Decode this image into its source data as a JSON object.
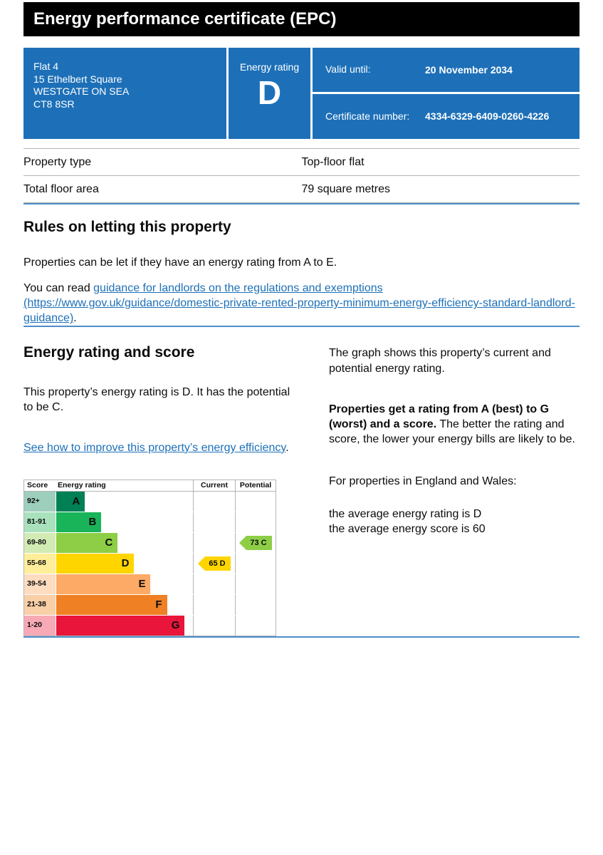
{
  "header": {
    "title": "Energy performance certificate (EPC)"
  },
  "summary": {
    "address_lines": [
      "Flat 4",
      "15 Ethelbert Square",
      "WESTGATE ON SEA",
      "CT8 8SR"
    ],
    "energy_rating_label": "Energy rating",
    "energy_rating_value": "D",
    "valid_until_label": "Valid until:",
    "valid_until_value": "20 November 2034",
    "certificate_number_label": "Certificate number:",
    "certificate_number_value": "4334-6329-6409-0260-4226"
  },
  "property_details": {
    "rows": [
      {
        "label": "Property type",
        "value": "Top-floor flat"
      },
      {
        "label": "Total floor area",
        "value": "79 square metres"
      }
    ]
  },
  "rules": {
    "heading": "Rules on letting this property",
    "paragraph1": "Properties can be let if they have an energy rating from A to E.",
    "paragraph2_prefix": "You can read ",
    "link_text": "guidance for landlords on the regulations and exemptions (https://www.gov.uk/guidance/domestic-private-rented-property-minimum-energy-efficiency-standard-landlord-guidance)",
    "paragraph2_suffix": "."
  },
  "rating": {
    "heading": "Energy rating and score",
    "paragraph1": "This property’s energy rating is D. It has the potential to be C.",
    "improve_link_text": "See how to improve this property’s energy efficiency",
    "improve_link_suffix": ".",
    "right": {
      "paragraph1": "The graph shows this property’s current and potential energy rating.",
      "paragraph2_bold": "Properties get a rating from A (best) to G (worst) and a score.",
      "paragraph2_rest": " The better the rating and score, the lower your energy bills are likely to be.",
      "paragraph3": "For properties in England and Wales:",
      "avg_rating_line": "the average energy rating is D",
      "avg_score_line": "the average energy score is 60"
    }
  },
  "chart_data": {
    "type": "bar",
    "title": "Energy rating and score",
    "columns": [
      "Score",
      "Energy rating",
      "Current",
      "Potential"
    ],
    "bands": [
      {
        "score_range": "92+",
        "letter": "A",
        "color": "#008054",
        "tint": "#9ecfbc",
        "width_pct": 21
      },
      {
        "score_range": "81-91",
        "letter": "B",
        "color": "#19b459",
        "tint": "#a9e1bd",
        "width_pct": 33
      },
      {
        "score_range": "69-80",
        "letter": "C",
        "color": "#8dce46",
        "tint": "#d2ebb5",
        "width_pct": 45
      },
      {
        "score_range": "55-68",
        "letter": "D",
        "color": "#ffd500",
        "tint": "#ffee99",
        "width_pct": 57
      },
      {
        "score_range": "39-54",
        "letter": "E",
        "color": "#fcaa65",
        "tint": "#fedcc0",
        "width_pct": 69
      },
      {
        "score_range": "21-38",
        "letter": "F",
        "color": "#ef8023",
        "tint": "#f9cfa7",
        "width_pct": 81
      },
      {
        "score_range": "1-20",
        "letter": "G",
        "color": "#e9153b",
        "tint": "#f7a9b6",
        "width_pct": 94
      }
    ],
    "current": {
      "score": 65,
      "letter": "D",
      "band_index": 3,
      "color": "#ffd500"
    },
    "potential": {
      "score": 73,
      "letter": "C",
      "band_index": 2,
      "color": "#8dce46"
    }
  },
  "colors": {
    "banner_blue": "#1d70b8",
    "link_blue": "#1d70b8",
    "header_black": "#000000",
    "divider_blue": "#4e8ec9",
    "text_black": "#0b0c0c",
    "chart_border_grey": "#b1b4b6"
  }
}
